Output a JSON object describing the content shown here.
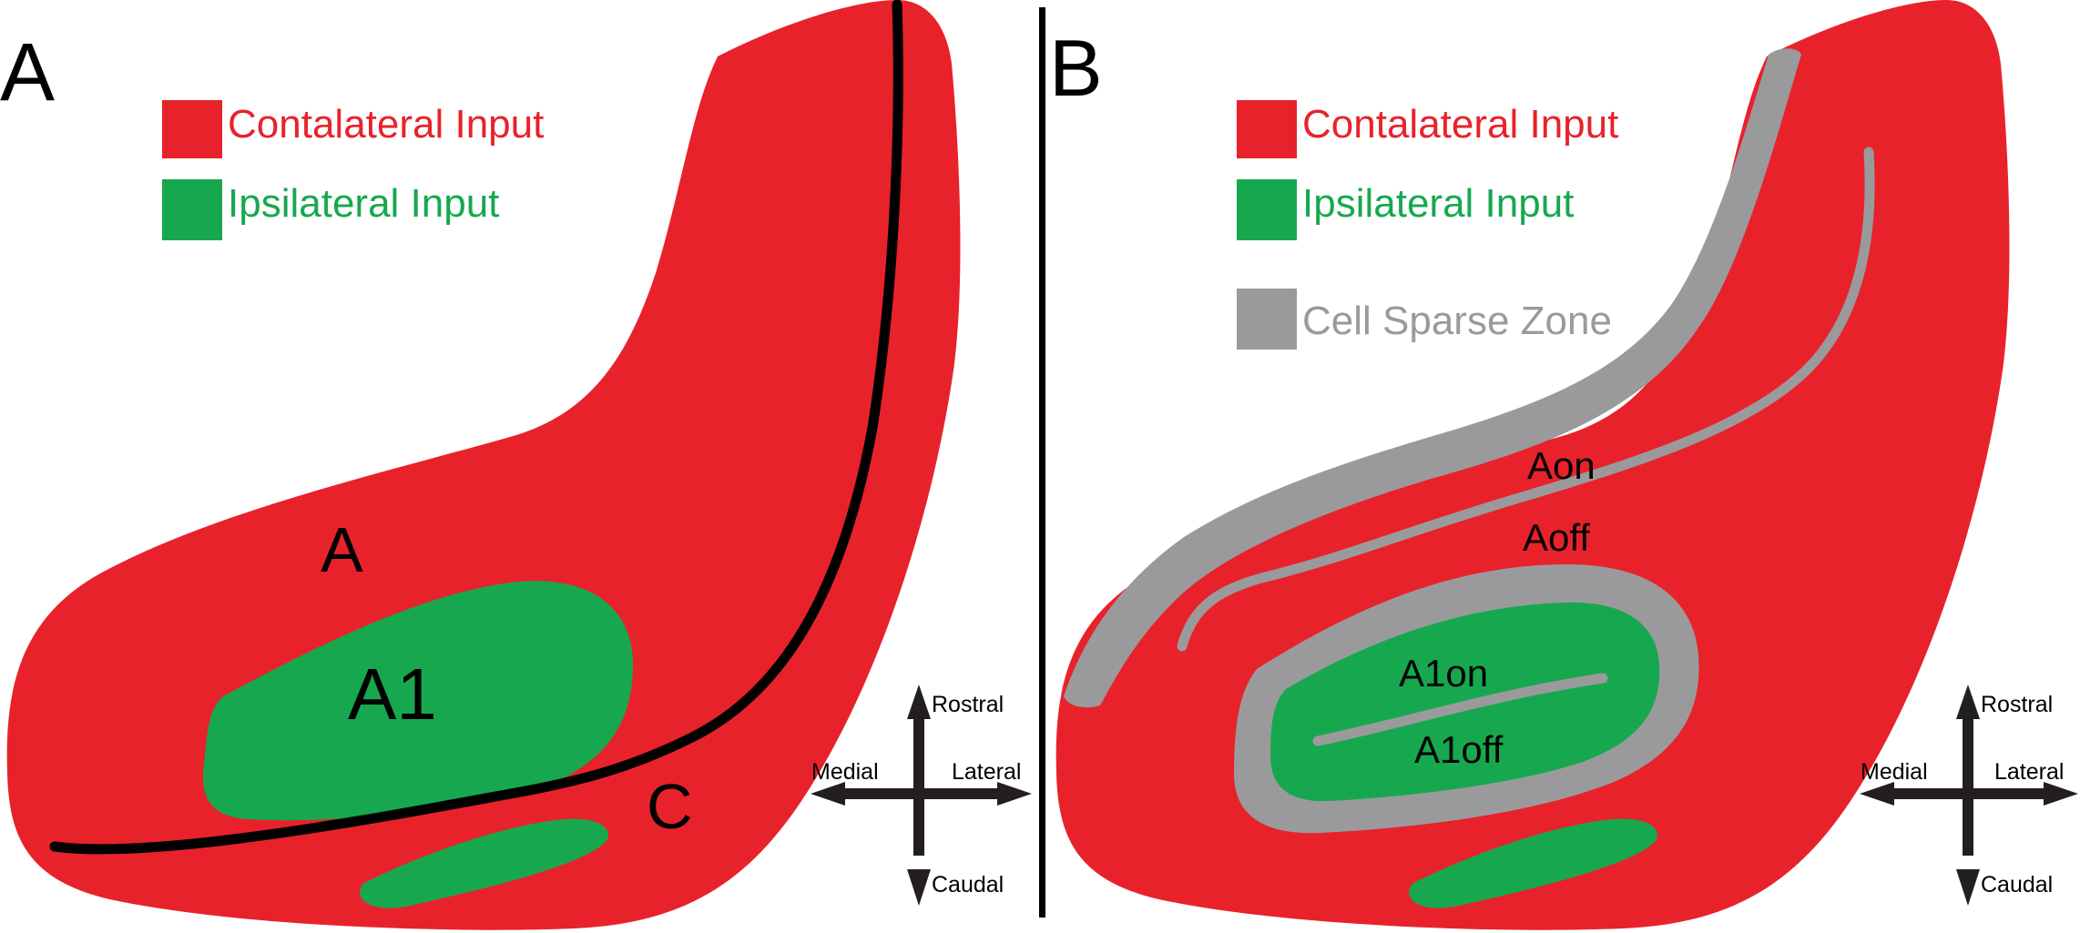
{
  "colors": {
    "contralateral": "#e8222b",
    "ipsilateral": "#17a84f",
    "cell_sparse": "#9a9a9c",
    "line": "#000000",
    "arrow": "#231f20"
  },
  "panel_a": {
    "letter": "A",
    "legend": {
      "contralateral": "Contalateral Input",
      "ipsilateral": "Ipsilateral Input"
    },
    "regions": {
      "a": "A",
      "a1": "A1",
      "c": "C"
    },
    "compass": {
      "rostral": "Rostral",
      "caudal": "Caudal",
      "medial": "Medial",
      "lateral": "Lateral"
    }
  },
  "panel_b": {
    "letter": "B",
    "legend": {
      "contralateral": "Contalateral Input",
      "ipsilateral": "Ipsilateral Input",
      "cell_sparse": "Cell Sparse Zone"
    },
    "regions": {
      "aon": "Aon",
      "aoff": "Aoff",
      "a1on": "A1on",
      "a1off": "A1off"
    },
    "compass": {
      "rostral": "Rostral",
      "caudal": "Caudal",
      "medial": "Medial",
      "lateral": "Lateral"
    }
  }
}
